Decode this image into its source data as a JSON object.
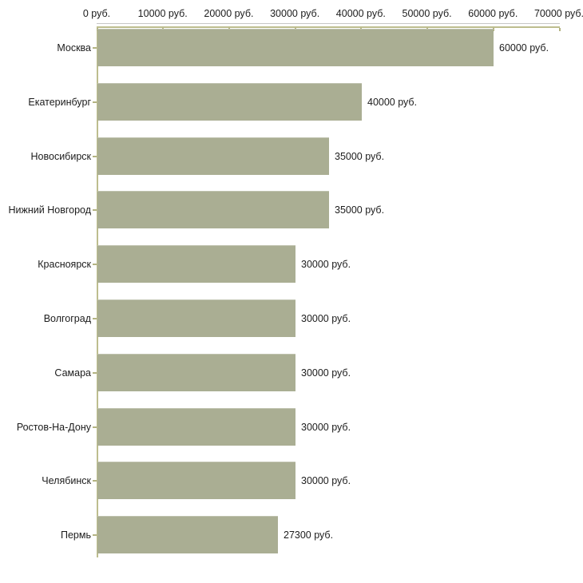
{
  "chart_data": {
    "type": "bar",
    "orientation": "horizontal",
    "title": "",
    "xlabel": "",
    "ylabel": "",
    "categories": [
      "Москва",
      "Екатеринбург",
      "Новосибирск",
      "Нижний Новгород",
      "Красноярск",
      "Волгоград",
      "Самара",
      "Ростов-На-Дону",
      "Челябинск",
      "Пермь"
    ],
    "values": [
      60000,
      40000,
      35000,
      35000,
      30000,
      30000,
      30000,
      30000,
      30000,
      27300
    ],
    "value_labels": [
      "60000 руб.",
      "40000 руб.",
      "35000 руб.",
      "35000 руб.",
      "30000 руб.",
      "30000 руб.",
      "30000 руб.",
      "30000 руб.",
      "30000 руб.",
      "27300 руб."
    ],
    "x_ticks": [
      0,
      10000,
      20000,
      30000,
      40000,
      50000,
      60000,
      70000
    ],
    "x_tick_labels": [
      "0 руб.",
      "10000 руб.",
      "20000 руб.",
      "30000 руб.",
      "40000 руб.",
      "50000 руб.",
      "60000 руб.",
      "70000 руб."
    ],
    "xlim": [
      0,
      70000
    ],
    "grid": false,
    "legend_position": "none",
    "colors": {
      "bar": "#aaae93",
      "axis": "#bdbd8e",
      "axis_tick": "#b3b381",
      "top_line": "#c6c6c6",
      "text": "#1c1c1c",
      "background": "#ffffff"
    }
  }
}
